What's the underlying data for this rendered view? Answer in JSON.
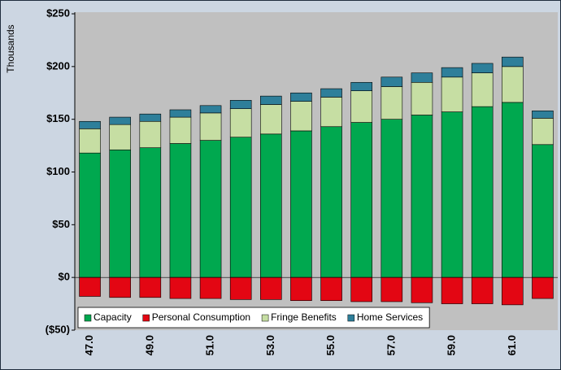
{
  "chart_data": {
    "type": "stacked_bar",
    "y_axis_label": "Thousands",
    "categories": [
      "47.0",
      null,
      "49.0",
      null,
      "51.0",
      null,
      "53.0",
      null,
      "55.0",
      null,
      "57.0",
      null,
      "59.0",
      null,
      "61.0",
      null
    ],
    "series": [
      {
        "name": "Capacity",
        "color": "#00a84f",
        "values": [
          118,
          121,
          123,
          127,
          130,
          133,
          136,
          139,
          143,
          147,
          150,
          154,
          157,
          162,
          166,
          126
        ]
      },
      {
        "name": "Personal Consumption",
        "color": "#e30613",
        "values": [
          -18,
          -19,
          -19,
          -20,
          -20,
          -21,
          -21,
          -22,
          -22,
          -23,
          -23,
          -24,
          -25,
          -25,
          -26,
          -20
        ]
      },
      {
        "name": "Fringe Benefits",
        "color": "#c6dea3",
        "values": [
          23,
          24,
          25,
          25,
          26,
          27,
          28,
          28,
          28,
          30,
          31,
          31,
          33,
          32,
          34,
          25
        ]
      },
      {
        "name": "Home Services",
        "color": "#2e7f9a",
        "values": [
          7,
          7,
          7,
          7,
          7,
          8,
          8,
          8,
          8,
          8,
          9,
          9,
          9,
          9,
          9,
          7
        ]
      }
    ],
    "ylim": [
      -50,
      250
    ],
    "yticks": [
      {
        "value": -50,
        "label": "($50)"
      },
      {
        "value": 0,
        "label": "$0"
      },
      {
        "value": 50,
        "label": "$50"
      },
      {
        "value": 100,
        "label": "$100"
      },
      {
        "value": 150,
        "label": "$150"
      },
      {
        "value": 200,
        "label": "$200"
      },
      {
        "value": 250,
        "label": "$250"
      }
    ],
    "grid": false,
    "legend_position": "bottom-left"
  }
}
